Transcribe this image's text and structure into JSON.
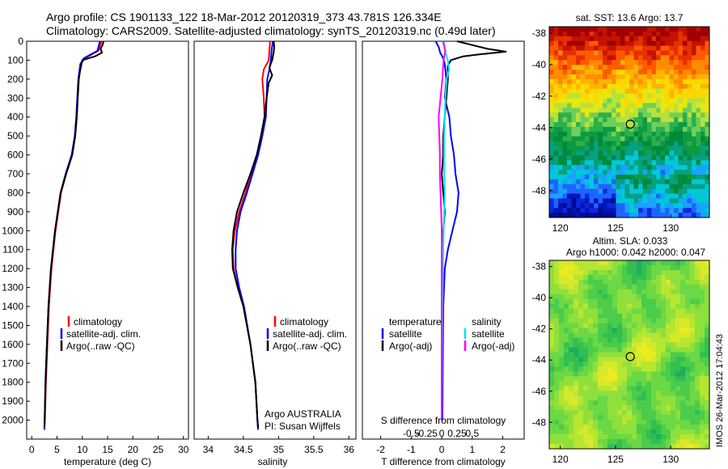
{
  "header": {
    "line1": "Argo profile: CS 1901133_122 18-Mar-2012 20120319_373 43.781S 126.334E",
    "line2": "Climatology: CARS2009. Satellite-adjusted climatology: synTS_20120319.nc (0.49d later)"
  },
  "colors": {
    "climatology": "#ff0000",
    "satellite": "#0000ff",
    "argo": "#000000",
    "salinity_satellite": "#00e5ee",
    "salinity_argo": "#ff00ff"
  },
  "chart_data": [
    {
      "id": "temperature",
      "type": "line",
      "xlabel": "temperature (deg C)",
      "ylabel": "",
      "xlim": [
        -1,
        31
      ],
      "ylim": [
        2100,
        0
      ],
      "xticks": [
        0,
        5,
        10,
        15,
        20,
        25,
        30
      ],
      "yticks": [
        0,
        100,
        200,
        300,
        400,
        500,
        600,
        700,
        800,
        900,
        1000,
        1100,
        1200,
        1300,
        1400,
        1500,
        1600,
        1700,
        1800,
        1900,
        2000
      ],
      "legend": [
        "climatology",
        "satellite-adj. clim.",
        "Argo(..raw -QC)"
      ],
      "series": [
        {
          "name": "climatology",
          "color": "red",
          "depth": [
            0,
            50,
            90,
            120,
            200,
            300,
            400,
            500,
            600,
            700,
            800,
            1000,
            1200,
            1400,
            1600,
            1800,
            2000,
            2050
          ],
          "values": [
            13.8,
            13.2,
            10.5,
            9.7,
            9.3,
            9.1,
            8.9,
            8.6,
            8.0,
            6.8,
            5.8,
            4.7,
            3.9,
            3.4,
            3.1,
            2.8,
            2.6,
            2.5
          ]
        },
        {
          "name": "satellite",
          "color": "blue",
          "depth": [
            0,
            50,
            90,
            120,
            200,
            300,
            400,
            500,
            600,
            700,
            800,
            1000,
            1200,
            1400,
            1600,
            1800,
            2000,
            2050
          ],
          "values": [
            13.5,
            13.0,
            10.3,
            9.6,
            9.2,
            9.0,
            8.8,
            8.5,
            7.9,
            6.7,
            5.7,
            4.6,
            3.8,
            3.3,
            3.0,
            2.7,
            2.55,
            2.5
          ]
        },
        {
          "name": "Argo",
          "color": "black",
          "depth": [
            0,
            20,
            40,
            60,
            80,
            100,
            150,
            200,
            300,
            400,
            500,
            600,
            700,
            800,
            1000,
            1200,
            1400,
            1600,
            1800,
            2000,
            2040
          ],
          "values": [
            14.2,
            14.0,
            13.6,
            13.9,
            12.5,
            10.0,
            9.6,
            9.3,
            9.1,
            8.9,
            8.6,
            8.0,
            6.8,
            5.7,
            4.6,
            3.8,
            3.3,
            3.0,
            2.75,
            2.55,
            2.5
          ]
        }
      ]
    },
    {
      "id": "salinity",
      "type": "line",
      "xlabel": "salinity",
      "xlim": [
        33.8,
        36.1
      ],
      "ylim": [
        2100,
        0
      ],
      "xticks": [
        34,
        34.5,
        35,
        35.5,
        36
      ],
      "legend": [
        "climatology",
        "satellite-adj. clim.",
        "Argo(..raw -QC)"
      ],
      "annotation": [
        "Argo AUSTRALIA",
        "PI: Susan Wijffels"
      ],
      "series": [
        {
          "name": "climatology",
          "color": "red",
          "depth": [
            0,
            50,
            100,
            150,
            200,
            300,
            400,
            500,
            600,
            700,
            800,
            900,
            1000,
            1100,
            1200,
            1300,
            1400,
            1600,
            1800,
            2000,
            2050
          ],
          "values": [
            34.88,
            34.87,
            34.86,
            34.79,
            34.77,
            34.79,
            34.8,
            34.76,
            34.69,
            34.61,
            34.53,
            34.44,
            34.38,
            34.35,
            34.36,
            34.42,
            34.5,
            34.6,
            34.67,
            34.7,
            34.71
          ]
        },
        {
          "name": "satellite",
          "color": "blue",
          "depth": [
            0,
            50,
            100,
            150,
            200,
            300,
            400,
            500,
            600,
            700,
            800,
            900,
            1000,
            1100,
            1200,
            1300,
            1400,
            1600,
            1800,
            2000,
            2050
          ],
          "values": [
            34.92,
            34.9,
            34.89,
            34.87,
            34.84,
            34.83,
            34.82,
            34.77,
            34.71,
            34.63,
            34.55,
            34.46,
            34.41,
            34.39,
            34.39,
            34.44,
            34.51,
            34.6,
            34.67,
            34.7,
            34.71
          ]
        },
        {
          "name": "Argo",
          "color": "black",
          "depth": [
            0,
            30,
            60,
            100,
            140,
            180,
            220,
            300,
            400,
            500,
            600,
            700,
            800,
            900,
            1000,
            1100,
            1200,
            1300,
            1400,
            1600,
            1800,
            2000,
            2040
          ],
          "values": [
            34.93,
            34.94,
            34.93,
            34.91,
            34.87,
            34.91,
            34.86,
            34.83,
            34.8,
            34.75,
            34.69,
            34.6,
            34.5,
            34.41,
            34.36,
            34.34,
            34.35,
            34.42,
            34.5,
            34.6,
            34.67,
            34.7,
            34.71
          ]
        }
      ]
    },
    {
      "id": "differences",
      "type": "line",
      "xlabel": "T difference from climatology",
      "toplabel": "S difference from climatology",
      "xlim": [
        -2.6,
        2.7
      ],
      "ylim": [
        2100,
        0
      ],
      "xticks": [
        -2,
        -1,
        0,
        1,
        2
      ],
      "s_ticks": [
        -0.5,
        -0.25,
        0,
        0.25,
        0.5
      ],
      "legend_titles": [
        "temperature",
        "salinity"
      ],
      "legend": [
        "satellite",
        "Argo(-adj)",
        "satellite",
        "Argo(-adj)"
      ],
      "series": [
        {
          "name": "temperature satellite",
          "color": "blue",
          "depth": [
            0,
            30,
            60,
            90,
            120,
            200,
            300,
            400,
            500,
            600,
            700,
            800,
            900,
            1000,
            1100,
            1200,
            1400,
            2000
          ],
          "values": [
            -0.2,
            -0.1,
            -0.05,
            0.05,
            0.1,
            0.15,
            0.1,
            0.25,
            0.3,
            0.4,
            0.45,
            0.55,
            0.5,
            0.35,
            0.2,
            0.1,
            0.05,
            0.02
          ]
        },
        {
          "name": "temperature Argo",
          "color": "black",
          "depth": [
            0,
            20,
            40,
            55,
            70,
            80,
            90,
            100,
            130,
            200,
            300,
            400,
            500,
            600,
            700,
            800,
            900,
            1000,
            1100,
            1200,
            1400,
            2000
          ],
          "values": [
            0.5,
            1.0,
            1.5,
            2.1,
            1.2,
            0.7,
            0.5,
            0.3,
            0.2,
            0.2,
            0.15,
            0.1,
            0.05,
            0.05,
            0.0,
            0.05,
            0.1,
            0.05,
            0.05,
            0.0,
            0.0,
            0.0
          ]
        },
        {
          "name": "salinity satellite",
          "color": "cyan",
          "depth": [
            0,
            50,
            100,
            150,
            200,
            300,
            400,
            500,
            600,
            700,
            800,
            900,
            1000,
            1200,
            1400,
            2000
          ],
          "values": [
            0.04,
            0.05,
            0.1,
            0.12,
            0.08,
            0.06,
            0.05,
            0.04,
            0.04,
            0.04,
            0.05,
            0.04,
            0.03,
            0.02,
            0.01,
            0.0
          ]
        },
        {
          "name": "salinity Argo",
          "color": "magenta",
          "depth": [
            0,
            50,
            100,
            150,
            200,
            300,
            400,
            500,
            600,
            700,
            800,
            900,
            1000,
            1200,
            1400,
            2000
          ],
          "values": [
            0.02,
            0.06,
            0.03,
            0.02,
            0.01,
            -0.02,
            -0.05,
            -0.04,
            -0.03,
            -0.03,
            -0.02,
            -0.01,
            0.0,
            0.0,
            0.0,
            0.0
          ]
        }
      ]
    },
    {
      "id": "sst-map",
      "type": "heatmap",
      "title": "sat. SST: 13.6  Argo: 13.7",
      "xlim": [
        119,
        133.5
      ],
      "ylim": [
        -49.7,
        -37.6
      ],
      "xticks": [
        120,
        125,
        130
      ],
      "yticks": [
        -38,
        -40,
        -42,
        -44,
        -46,
        -48
      ],
      "marker": {
        "lon": 126.334,
        "lat": -43.781
      }
    },
    {
      "id": "sla-map",
      "type": "heatmap",
      "title": "Altim. SLA: 0.033",
      "subtitle": "Argo h1000: 0.042 h2000: 0.047",
      "xlim": [
        119,
        133.5
      ],
      "ylim": [
        -49.7,
        -37.6
      ],
      "xticks": [
        120,
        125,
        130
      ],
      "yticks": [
        -38,
        -40,
        -42,
        -44,
        -46,
        -48
      ],
      "marker": {
        "lon": 126.334,
        "lat": -43.781
      }
    }
  ],
  "side_label": "IMOS 26-Mar-2012 17:04:43"
}
